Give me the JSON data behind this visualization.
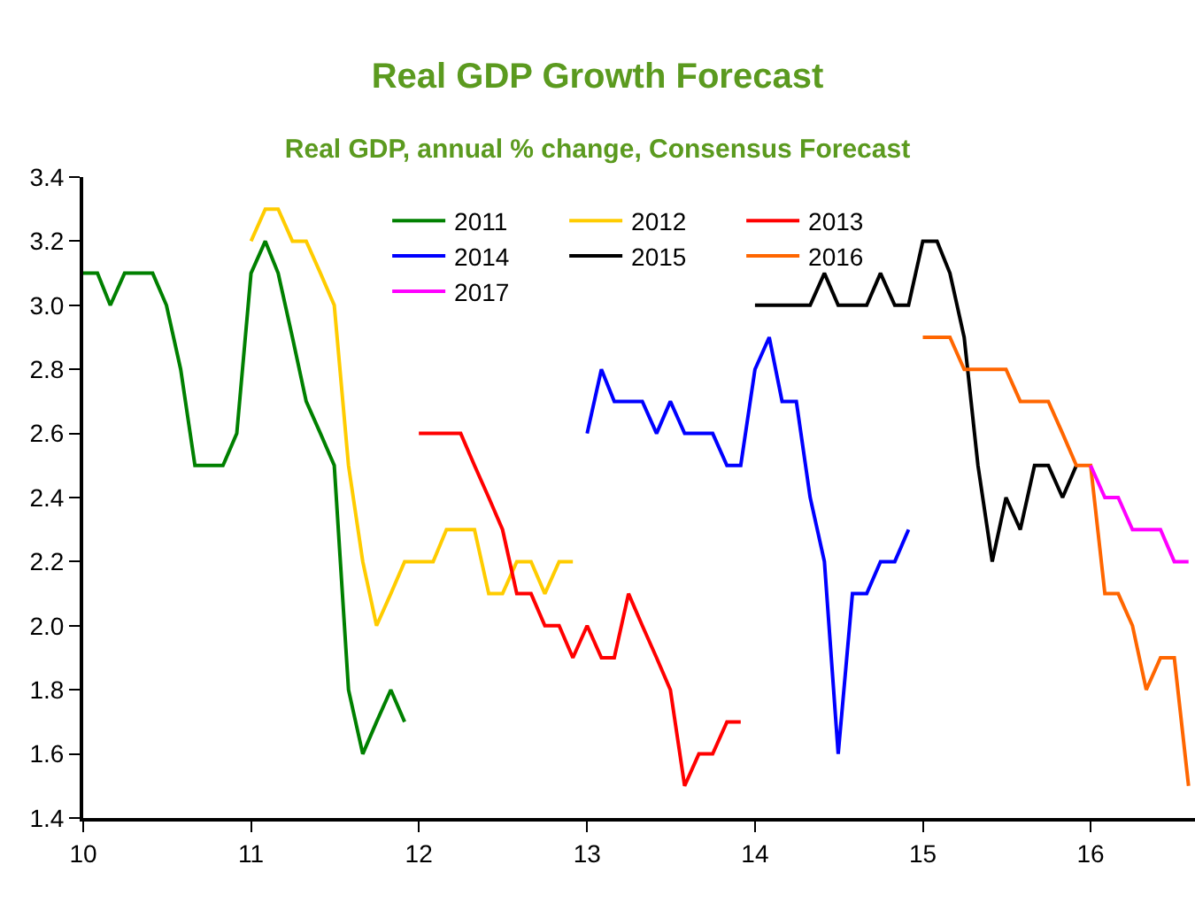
{
  "chart_data": {
    "type": "line",
    "title": "Real GDP Growth Forecast",
    "subtitle": "Real GDP, annual % change, Consensus Forecast",
    "xlim": [
      "2010-01-01",
      "2016-08-15"
    ],
    "xticks": [
      {
        "value": "2010-01-01",
        "label": "10"
      },
      {
        "value": "2011-01-01",
        "label": "11"
      },
      {
        "value": "2012-01-01",
        "label": "12"
      },
      {
        "value": "2013-01-01",
        "label": "13"
      },
      {
        "value": "2014-01-01",
        "label": "14"
      },
      {
        "value": "2015-01-01",
        "label": "15"
      },
      {
        "value": "2016-01-01",
        "label": "16"
      }
    ],
    "ylim": [
      1.4,
      3.4
    ],
    "yticks": [
      1.4,
      1.6,
      1.8,
      {
        "value": 2,
        "label": "2.0"
      },
      2.2,
      2.4,
      2.6,
      2.8,
      {
        "value": 3,
        "label": "3.0"
      },
      3.2,
      3.4
    ],
    "grid": false,
    "legend": "top",
    "marker": "none",
    "line_style": "solid",
    "series": [
      {
        "name": "2011",
        "color": "#008000",
        "x": [
          "2010-01",
          "2010-02",
          "2010-03",
          "2010-04",
          "2010-05",
          "2010-06",
          "2010-07",
          "2010-08",
          "2010-09",
          "2010-10",
          "2010-11",
          "2010-12",
          "2011-01",
          "2011-02",
          "2011-03",
          "2011-04",
          "2011-05",
          "2011-06",
          "2011-07",
          "2011-08",
          "2011-09",
          "2011-10",
          "2011-11",
          "2011-12"
        ],
        "values": [
          3.1,
          3.1,
          3.0,
          3.1,
          3.1,
          3.1,
          3.0,
          2.8,
          2.5,
          2.5,
          2.5,
          2.6,
          3.1,
          3.2,
          3.1,
          2.9,
          2.7,
          2.6,
          2.5,
          1.8,
          1.6,
          1.7,
          1.8,
          1.7
        ]
      },
      {
        "name": "2012",
        "color": "#ffcc00",
        "x": [
          "2011-01",
          "2011-02",
          "2011-03",
          "2011-04",
          "2011-05",
          "2011-06",
          "2011-07",
          "2011-08",
          "2011-09",
          "2011-10",
          "2011-11",
          "2011-12",
          "2012-01",
          "2012-02",
          "2012-03",
          "2012-04",
          "2012-05",
          "2012-06",
          "2012-07",
          "2012-08",
          "2012-09",
          "2012-10",
          "2012-11",
          "2012-12"
        ],
        "values": [
          3.2,
          3.3,
          3.3,
          3.2,
          3.2,
          3.1,
          3.0,
          2.5,
          2.2,
          2.0,
          2.1,
          2.2,
          2.2,
          2.2,
          2.3,
          2.3,
          2.3,
          2.1,
          2.1,
          2.2,
          2.2,
          2.1,
          2.2,
          2.2
        ]
      },
      {
        "name": "2013",
        "color": "#ff0000",
        "x": [
          "2012-01",
          "2012-02",
          "2012-03",
          "2012-04",
          "2012-05",
          "2012-06",
          "2012-07",
          "2012-08",
          "2012-09",
          "2012-10",
          "2012-11",
          "2012-12",
          "2013-01",
          "2013-02",
          "2013-03",
          "2013-04",
          "2013-05",
          "2013-06",
          "2013-07",
          "2013-08",
          "2013-09",
          "2013-10",
          "2013-11",
          "2013-12"
        ],
        "values": [
          2.6,
          2.6,
          2.6,
          2.6,
          2.5,
          2.4,
          2.3,
          2.1,
          2.1,
          2.0,
          2.0,
          1.9,
          2.0,
          1.9,
          1.9,
          2.1,
          2.0,
          1.9,
          1.8,
          1.5,
          1.6,
          1.6,
          1.7,
          1.7
        ]
      },
      {
        "name": "2014",
        "color": "#0000ff",
        "x": [
          "2013-01",
          "2013-02",
          "2013-03",
          "2013-04",
          "2013-05",
          "2013-06",
          "2013-07",
          "2013-08",
          "2013-09",
          "2013-10",
          "2013-11",
          "2013-12",
          "2014-01",
          "2014-02",
          "2014-03",
          "2014-04",
          "2014-05",
          "2014-06",
          "2014-07",
          "2014-08",
          "2014-09",
          "2014-10",
          "2014-11",
          "2014-12"
        ],
        "values": [
          2.6,
          2.8,
          2.7,
          2.7,
          2.7,
          2.6,
          2.7,
          2.6,
          2.6,
          2.6,
          2.5,
          2.5,
          2.8,
          2.9,
          2.7,
          2.7,
          2.4,
          2.2,
          1.6,
          2.1,
          2.1,
          2.2,
          2.2,
          2.3
        ]
      },
      {
        "name": "2015",
        "color": "#000000",
        "x": [
          "2014-01",
          "2014-02",
          "2014-03",
          "2014-04",
          "2014-05",
          "2014-06",
          "2014-07",
          "2014-08",
          "2014-09",
          "2014-10",
          "2014-11",
          "2014-12",
          "2015-01",
          "2015-02",
          "2015-03",
          "2015-04",
          "2015-05",
          "2015-06",
          "2015-07",
          "2015-08",
          "2015-09",
          "2015-10",
          "2015-11",
          "2015-12"
        ],
        "values": [
          3.0,
          3.0,
          3.0,
          3.0,
          3.0,
          3.1,
          3.0,
          3.0,
          3.0,
          3.1,
          3.0,
          3.0,
          3.2,
          3.2,
          3.1,
          2.9,
          2.5,
          2.2,
          2.4,
          2.3,
          2.5,
          2.5,
          2.4,
          2.5
        ]
      },
      {
        "name": "2016",
        "color": "#ff6600",
        "x": [
          "2015-01",
          "2015-02",
          "2015-03",
          "2015-04",
          "2015-05",
          "2015-06",
          "2015-07",
          "2015-08",
          "2015-09",
          "2015-10",
          "2015-11",
          "2015-12",
          "2016-01",
          "2016-02",
          "2016-03",
          "2016-04",
          "2016-05",
          "2016-06",
          "2016-07",
          "2016-08"
        ],
        "values": [
          2.9,
          2.9,
          2.9,
          2.8,
          2.8,
          2.8,
          2.8,
          2.7,
          2.7,
          2.7,
          2.6,
          2.5,
          2.5,
          2.1,
          2.1,
          2.0,
          1.8,
          1.9,
          1.9,
          1.5
        ]
      },
      {
        "name": "2017",
        "color": "#ff00ff",
        "x": [
          "2016-01",
          "2016-02",
          "2016-03",
          "2016-04",
          "2016-05",
          "2016-06",
          "2016-07",
          "2016-08"
        ],
        "values": [
          2.5,
          2.4,
          2.4,
          2.3,
          2.3,
          2.3,
          2.2,
          2.2
        ]
      }
    ]
  }
}
